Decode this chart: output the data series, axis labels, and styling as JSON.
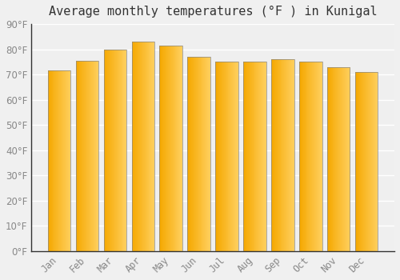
{
  "title": "Average monthly temperatures (°F ) in Kunigal",
  "categories": [
    "Jan",
    "Feb",
    "Mar",
    "Apr",
    "May",
    "Jun",
    "Jul",
    "Aug",
    "Sep",
    "Oct",
    "Nov",
    "Dec"
  ],
  "values": [
    71.5,
    75.5,
    80.0,
    83.0,
    81.5,
    77.0,
    75.0,
    75.0,
    76.0,
    75.0,
    73.0,
    71.0
  ],
  "bar_color_left": "#F5A800",
  "bar_color_right": "#FFD060",
  "bar_edge_color": "#888888",
  "background_color": "#F0F0F0",
  "plot_bg_color": "#EFEFEF",
  "grid_color": "#FFFFFF",
  "tick_label_color": "#888888",
  "title_color": "#333333",
  "ylim": [
    0,
    90
  ],
  "yticks": [
    0,
    10,
    20,
    30,
    40,
    50,
    60,
    70,
    80,
    90
  ],
  "title_fontsize": 11,
  "tick_fontsize": 8.5,
  "bar_width": 0.82
}
